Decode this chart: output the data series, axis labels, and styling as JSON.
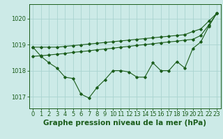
{
  "background_color": "#cceae7",
  "grid_color": "#aad4d0",
  "line_color": "#1a5c1a",
  "title": "Graphe pression niveau de la mer (hPa)",
  "xlim": [
    -0.5,
    23.5
  ],
  "ylim": [
    1016.55,
    1020.55
  ],
  "yticks": [
    1017,
    1018,
    1019,
    1020
  ],
  "xticks": [
    0,
    1,
    2,
    3,
    4,
    5,
    6,
    7,
    8,
    9,
    10,
    11,
    12,
    13,
    14,
    15,
    16,
    17,
    18,
    19,
    20,
    21,
    22,
    23
  ],
  "series1": [
    1018.9,
    1018.55,
    1018.3,
    1018.1,
    1017.75,
    1017.7,
    1017.1,
    1016.95,
    1017.35,
    1017.65,
    1018.0,
    1018.0,
    1017.95,
    1017.75,
    1017.75,
    1018.3,
    1018.0,
    1018.0,
    1018.35,
    1018.1,
    1018.85,
    1019.1,
    1019.7,
    1020.2
  ],
  "series2": [
    1018.55,
    1018.57,
    1018.6,
    1018.63,
    1018.66,
    1018.7,
    1018.73,
    1018.76,
    1018.8,
    1018.83,
    1018.86,
    1018.9,
    1018.93,
    1018.97,
    1019.0,
    1019.03,
    1019.07,
    1019.1,
    1019.13,
    1019.17,
    1019.2,
    1019.35,
    1019.75,
    1020.2
  ],
  "series3": [
    1018.9,
    1018.9,
    1018.9,
    1018.9,
    1018.93,
    1018.96,
    1018.99,
    1019.02,
    1019.05,
    1019.08,
    1019.11,
    1019.14,
    1019.17,
    1019.2,
    1019.23,
    1019.26,
    1019.29,
    1019.32,
    1019.35,
    1019.38,
    1019.5,
    1019.6,
    1019.9,
    1020.2
  ],
  "title_fontsize": 7.5,
  "tick_fontsize": 6,
  "fig_width": 3.2,
  "fig_height": 2.0,
  "dpi": 100
}
